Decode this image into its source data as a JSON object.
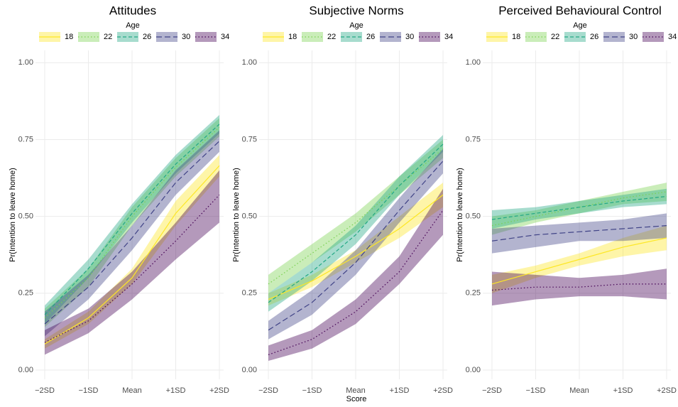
{
  "chart_data": [
    {
      "type": "line",
      "title": "Attitudes",
      "y_label": "Pr(Intention to leave home)",
      "legend_title": "Age",
      "legend": "top",
      "categories": [
        "−2SD",
        "−1SD",
        "Mean",
        "+1SD",
        "+2SD"
      ],
      "ylim": [
        -0.03,
        1.04
      ],
      "yticks": [
        {
          "value": 0,
          "label": "0.00"
        },
        {
          "value": 0.25,
          "label": "0.25"
        },
        {
          "value": 0.5,
          "label": "0.50"
        },
        {
          "value": 0.75,
          "label": "0.75"
        },
        {
          "value": 1,
          "label": "1.00"
        }
      ],
      "grid": true,
      "series": [
        {
          "name": "18",
          "color": "#fde725",
          "linestyle": "solid",
          "values": [
            0.085,
            0.17,
            0.3,
            0.51,
            0.665
          ],
          "lower": [
            0.07,
            0.15,
            0.28,
            0.47,
            0.63
          ],
          "upper": [
            0.1,
            0.19,
            0.33,
            0.55,
            0.7
          ]
        },
        {
          "name": "22",
          "color": "#7ad151",
          "linestyle": "dotted",
          "values": [
            0.17,
            0.3,
            0.5,
            0.66,
            0.79
          ],
          "lower": [
            0.14,
            0.27,
            0.47,
            0.63,
            0.76
          ],
          "upper": [
            0.2,
            0.33,
            0.53,
            0.69,
            0.82
          ]
        },
        {
          "name": "26",
          "color": "#22a884",
          "linestyle": "dashed",
          "values": [
            0.18,
            0.33,
            0.51,
            0.67,
            0.8
          ],
          "lower": [
            0.15,
            0.3,
            0.48,
            0.64,
            0.77
          ],
          "upper": [
            0.21,
            0.36,
            0.54,
            0.7,
            0.83
          ]
        },
        {
          "name": "30",
          "color": "#414487",
          "linestyle": "longdash",
          "values": [
            0.15,
            0.27,
            0.43,
            0.61,
            0.745
          ],
          "lower": [
            0.11,
            0.23,
            0.39,
            0.57,
            0.71
          ],
          "upper": [
            0.19,
            0.31,
            0.47,
            0.65,
            0.78
          ]
        },
        {
          "name": "34",
          "color": "#440154",
          "linestyle": "dotted",
          "values": [
            0.09,
            0.16,
            0.28,
            0.42,
            0.57
          ],
          "lower": [
            0.05,
            0.12,
            0.23,
            0.36,
            0.48
          ],
          "upper": [
            0.13,
            0.2,
            0.32,
            0.48,
            0.65
          ]
        }
      ]
    },
    {
      "type": "line",
      "title": "Subjective Norms",
      "y_label": "Pr(Intention to leave home)",
      "x_label": "Score",
      "legend_title": "Age",
      "legend": "top",
      "categories": [
        "−2SD",
        "−1SD",
        "Mean",
        "+1SD",
        "+2SD"
      ],
      "ylim": [
        -0.03,
        1.04
      ],
      "yticks": [
        {
          "value": 0,
          "label": "0.00"
        },
        {
          "value": 0.25,
          "label": "0.25"
        },
        {
          "value": 0.5,
          "label": "0.50"
        },
        {
          "value": 0.75,
          "label": "0.75"
        },
        {
          "value": 1,
          "label": "1.00"
        }
      ],
      "grid": true,
      "series": [
        {
          "name": "18",
          "color": "#fde725",
          "linestyle": "solid",
          "values": [
            0.23,
            0.29,
            0.37,
            0.46,
            0.57
          ],
          "lower": [
            0.21,
            0.27,
            0.35,
            0.43,
            0.53
          ],
          "upper": [
            0.25,
            0.31,
            0.39,
            0.5,
            0.61
          ]
        },
        {
          "name": "22",
          "color": "#7ad151",
          "linestyle": "dotted",
          "values": [
            0.28,
            0.38,
            0.48,
            0.6,
            0.72
          ],
          "lower": [
            0.25,
            0.35,
            0.45,
            0.57,
            0.69
          ],
          "upper": [
            0.31,
            0.41,
            0.51,
            0.63,
            0.75
          ]
        },
        {
          "name": "26",
          "color": "#22a884",
          "linestyle": "dashed",
          "values": [
            0.22,
            0.32,
            0.44,
            0.6,
            0.735
          ],
          "lower": [
            0.19,
            0.29,
            0.41,
            0.57,
            0.71
          ],
          "upper": [
            0.25,
            0.35,
            0.47,
            0.63,
            0.765
          ]
        },
        {
          "name": "30",
          "color": "#414487",
          "linestyle": "longdash",
          "values": [
            0.13,
            0.22,
            0.35,
            0.52,
            0.68
          ],
          "lower": [
            0.1,
            0.18,
            0.31,
            0.48,
            0.64
          ],
          "upper": [
            0.16,
            0.26,
            0.39,
            0.56,
            0.72
          ]
        },
        {
          "name": "34",
          "color": "#440154",
          "linestyle": "dotted",
          "values": [
            0.05,
            0.1,
            0.19,
            0.32,
            0.52
          ],
          "lower": [
            0.03,
            0.07,
            0.15,
            0.28,
            0.44
          ],
          "upper": [
            0.08,
            0.13,
            0.23,
            0.37,
            0.59
          ]
        }
      ]
    },
    {
      "type": "line",
      "title": "Perceived Behavioural Control",
      "y_label": "Pr(Intention to leave home)",
      "legend_title": "Age",
      "legend": "top",
      "categories": [
        "−2SD",
        "−1SD",
        "Mean",
        "+1SD",
        "+2SD"
      ],
      "ylim": [
        -0.03,
        1.04
      ],
      "yticks": [
        {
          "value": 0,
          "label": "0.00"
        },
        {
          "value": 0.25,
          "label": "0.25"
        },
        {
          "value": 0.5,
          "label": "0.50"
        },
        {
          "value": 0.75,
          "label": "0.75"
        },
        {
          "value": 1,
          "label": "1.00"
        }
      ],
      "grid": true,
      "series": [
        {
          "name": "18",
          "color": "#fde725",
          "linestyle": "solid",
          "values": [
            0.28,
            0.32,
            0.36,
            0.4,
            0.43
          ],
          "lower": [
            0.25,
            0.3,
            0.34,
            0.37,
            0.39
          ],
          "upper": [
            0.31,
            0.34,
            0.38,
            0.43,
            0.47
          ]
        },
        {
          "name": "22",
          "color": "#7ad151",
          "linestyle": "dotted",
          "values": [
            0.47,
            0.5,
            0.53,
            0.56,
            0.58
          ],
          "lower": [
            0.44,
            0.48,
            0.51,
            0.54,
            0.55
          ],
          "upper": [
            0.5,
            0.52,
            0.55,
            0.58,
            0.61
          ]
        },
        {
          "name": "26",
          "color": "#22a884",
          "linestyle": "dashed",
          "values": [
            0.49,
            0.51,
            0.53,
            0.55,
            0.565
          ],
          "lower": [
            0.46,
            0.49,
            0.51,
            0.53,
            0.54
          ],
          "upper": [
            0.52,
            0.53,
            0.55,
            0.57,
            0.59
          ]
        },
        {
          "name": "30",
          "color": "#414487",
          "linestyle": "longdash",
          "values": [
            0.42,
            0.44,
            0.45,
            0.46,
            0.47
          ],
          "lower": [
            0.38,
            0.4,
            0.42,
            0.42,
            0.43
          ],
          "upper": [
            0.46,
            0.47,
            0.48,
            0.49,
            0.51
          ]
        },
        {
          "name": "34",
          "color": "#440154",
          "linestyle": "dotted",
          "values": [
            0.26,
            0.27,
            0.27,
            0.28,
            0.28
          ],
          "lower": [
            0.21,
            0.23,
            0.24,
            0.24,
            0.23
          ],
          "upper": [
            0.32,
            0.31,
            0.3,
            0.31,
            0.33
          ]
        }
      ]
    }
  ]
}
